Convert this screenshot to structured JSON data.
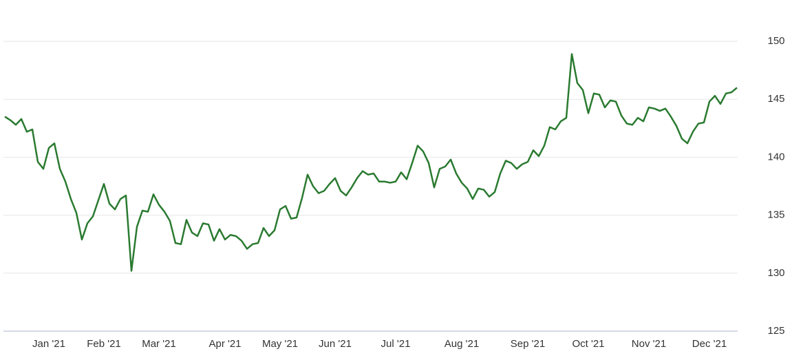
{
  "chart_data": {
    "type": "line",
    "categories": [
      null,
      null,
      null,
      null,
      null,
      null,
      null,
      null,
      "Jan '21",
      null,
      null,
      null,
      null,
      null,
      null,
      null,
      null,
      null,
      "Feb '21",
      null,
      null,
      null,
      null,
      null,
      null,
      null,
      null,
      null,
      "Mar '21",
      null,
      null,
      null,
      null,
      null,
      null,
      null,
      null,
      null,
      null,
      null,
      "Apr '21",
      null,
      null,
      null,
      null,
      null,
      null,
      null,
      null,
      null,
      "May '21",
      null,
      null,
      null,
      null,
      null,
      null,
      null,
      null,
      null,
      "Jun '21",
      null,
      null,
      null,
      null,
      null,
      null,
      null,
      null,
      null,
      null,
      "Jul '21",
      null,
      null,
      null,
      null,
      null,
      null,
      null,
      null,
      null,
      null,
      null,
      "Aug '21",
      null,
      null,
      null,
      null,
      null,
      null,
      null,
      null,
      null,
      null,
      null,
      "Sep '21",
      null,
      null,
      null,
      null,
      null,
      null,
      null,
      null,
      null,
      null,
      "Oct '21",
      null,
      null,
      null,
      null,
      null,
      null,
      null,
      null,
      null,
      null,
      "Nov '21",
      null,
      null,
      null,
      null,
      null,
      null,
      null,
      null,
      null,
      null,
      "Dec '21",
      null,
      null,
      null,
      null,
      null
    ],
    "series": [
      {
        "color": "#2a7a30",
        "values": [
          143.5,
          143.2,
          142.8,
          143.3,
          142.2,
          142.4,
          139.6,
          139.0,
          140.8,
          141.2,
          139.0,
          137.9,
          136.4,
          135.2,
          132.9,
          134.3,
          134.9,
          136.3,
          137.7,
          136.0,
          135.5,
          136.4,
          136.7,
          130.2,
          134.0,
          135.4,
          135.3,
          136.8,
          135.9,
          135.3,
          134.5,
          132.6,
          132.5,
          134.6,
          133.5,
          133.2,
          134.3,
          134.2,
          132.8,
          133.8,
          132.9,
          133.3,
          133.2,
          132.8,
          132.1,
          132.5,
          132.6,
          133.9,
          133.2,
          133.7,
          135.5,
          135.8,
          134.7,
          134.8,
          136.5,
          138.5,
          137.5,
          136.9,
          137.1,
          137.7,
          138.2,
          137.1,
          136.7,
          137.4,
          138.2,
          138.8,
          138.5,
          138.6,
          137.9,
          137.9,
          137.8,
          137.9,
          138.7,
          138.1,
          139.5,
          141.0,
          140.5,
          139.5,
          137.4,
          139.0,
          139.2,
          139.8,
          138.6,
          137.8,
          137.3,
          136.4,
          137.3,
          137.2,
          136.6,
          137.0,
          138.6,
          139.7,
          139.5,
          139.0,
          139.4,
          139.6,
          140.6,
          140.1,
          141.0,
          142.6,
          142.4,
          143.1,
          143.4,
          148.9,
          146.4,
          145.8,
          143.8,
          145.5,
          145.4,
          144.3,
          144.9,
          144.8,
          143.6,
          142.9,
          142.8,
          143.4,
          143.1,
          144.3,
          144.2,
          144.0,
          144.2,
          143.5,
          142.7,
          141.6,
          141.2,
          142.2,
          142.9,
          143.0,
          144.8,
          145.3,
          144.6,
          145.5,
          145.6,
          146.0
        ]
      }
    ],
    "ylim": [
      125,
      150
    ],
    "yticks": [
      125,
      130,
      135,
      140,
      145,
      150
    ],
    "grid": true
  }
}
